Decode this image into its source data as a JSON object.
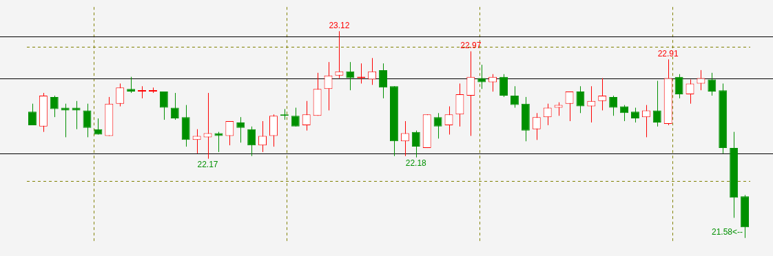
{
  "chart_data": {
    "type": "candlestick",
    "categories": [
      null,
      null,
      null,
      null,
      null,
      null,
      null,
      null,
      null,
      null,
      null,
      null,
      null,
      null,
      null,
      null,
      null,
      null,
      null,
      null,
      null,
      null,
      null,
      null,
      null,
      null,
      null,
      null,
      null,
      null,
      null,
      null,
      null,
      null,
      null,
      null,
      null,
      null,
      null,
      null,
      null,
      null,
      null,
      null,
      null,
      null,
      null,
      null,
      null,
      null,
      null,
      null,
      null,
      null,
      null,
      null,
      null,
      null,
      null,
      null,
      null,
      null,
      null,
      null,
      null,
      null
    ],
    "ohlc": [
      [
        22.52,
        22.58,
        22.42,
        22.42
      ],
      [
        22.41,
        22.66,
        22.37,
        22.64
      ],
      [
        22.63,
        22.64,
        22.48,
        22.54
      ],
      [
        22.55,
        22.58,
        22.33,
        22.53
      ],
      [
        22.55,
        22.6,
        22.39,
        22.53
      ],
      [
        22.53,
        22.58,
        22.33,
        22.4
      ],
      [
        22.39,
        22.47,
        22.35,
        22.35
      ],
      [
        22.34,
        22.63,
        22.34,
        22.58
      ],
      [
        22.58,
        22.73,
        22.56,
        22.7
      ],
      [
        22.69,
        22.78,
        22.66,
        22.67
      ],
      [
        22.67,
        22.71,
        22.62,
        22.68
      ],
      [
        22.67,
        22.7,
        22.66,
        22.68
      ],
      [
        22.67,
        22.67,
        22.46,
        22.55
      ],
      [
        22.55,
        22.66,
        22.46,
        22.47
      ],
      [
        22.48,
        22.57,
        22.26,
        22.31
      ],
      [
        22.31,
        22.39,
        22.21,
        22.34
      ],
      [
        22.33,
        22.66,
        22.17,
        22.36
      ],
      [
        22.36,
        22.37,
        22.22,
        22.34
      ],
      [
        22.34,
        22.45,
        22.27,
        22.45
      ],
      [
        22.44,
        22.48,
        22.29,
        22.4
      ],
      [
        22.39,
        22.41,
        22.19,
        22.27
      ],
      [
        22.27,
        22.45,
        22.22,
        22.34
      ],
      [
        22.34,
        22.5,
        22.26,
        22.49
      ],
      [
        22.5,
        22.54,
        22.46,
        22.49
      ],
      [
        22.49,
        22.55,
        22.41,
        22.41
      ],
      [
        22.42,
        22.6,
        22.38,
        22.5
      ],
      [
        22.49,
        22.81,
        22.49,
        22.69
      ],
      [
        22.69,
        22.89,
        22.53,
        22.79
      ],
      [
        22.79,
        23.12,
        22.77,
        22.82
      ],
      [
        22.82,
        22.89,
        22.68,
        22.77
      ],
      [
        22.77,
        22.88,
        22.73,
        22.78
      ],
      [
        22.76,
        22.92,
        22.72,
        22.82
      ],
      [
        22.83,
        22.88,
        22.62,
        22.7
      ],
      [
        22.71,
        22.71,
        22.19,
        22.3
      ],
      [
        22.3,
        22.45,
        22.19,
        22.36
      ],
      [
        22.37,
        22.38,
        22.18,
        22.26
      ],
      [
        22.25,
        22.5,
        22.25,
        22.5
      ],
      [
        22.48,
        22.51,
        22.32,
        22.41
      ],
      [
        22.42,
        22.56,
        22.35,
        22.5
      ],
      [
        22.5,
        22.73,
        22.41,
        22.65
      ],
      [
        22.64,
        22.97,
        22.34,
        22.78
      ],
      [
        22.77,
        22.87,
        22.69,
        22.74
      ],
      [
        22.74,
        22.8,
        22.67,
        22.78
      ],
      [
        22.78,
        22.8,
        22.63,
        22.64
      ],
      [
        22.64,
        22.71,
        22.55,
        22.57
      ],
      [
        22.58,
        22.63,
        22.3,
        22.38
      ],
      [
        22.39,
        22.51,
        22.31,
        22.48
      ],
      [
        22.48,
        22.58,
        22.42,
        22.55
      ],
      [
        22.55,
        22.59,
        22.49,
        22.57
      ],
      [
        22.58,
        22.67,
        22.45,
        22.67
      ],
      [
        22.67,
        22.71,
        22.51,
        22.56
      ],
      [
        22.56,
        22.71,
        22.44,
        22.6
      ],
      [
        22.6,
        22.77,
        22.53,
        22.64
      ],
      [
        22.63,
        22.64,
        22.49,
        22.55
      ],
      [
        22.56,
        22.57,
        22.45,
        22.51
      ],
      [
        22.52,
        22.55,
        22.44,
        22.47
      ],
      [
        22.48,
        22.57,
        22.33,
        22.53
      ],
      [
        22.53,
        22.75,
        22.41,
        22.44
      ],
      [
        22.43,
        22.91,
        22.42,
        22.77
      ],
      [
        22.78,
        22.8,
        22.62,
        22.65
      ],
      [
        22.65,
        22.76,
        22.58,
        22.73
      ],
      [
        22.73,
        22.83,
        22.68,
        22.77
      ],
      [
        22.76,
        22.81,
        22.64,
        22.67
      ],
      [
        22.68,
        22.73,
        22.21,
        22.25
      ],
      [
        22.25,
        22.37,
        21.73,
        21.88
      ],
      [
        21.89,
        21.9,
        21.58,
        21.66
      ]
    ],
    "colors": [
      "#009000",
      "#ff0000",
      "#009000",
      "#009000",
      "#009000",
      "#009000",
      "#009000",
      "#ff0000",
      "#ff0000",
      "#009000",
      "#ff0000",
      "#ff0000",
      "#009000",
      "#009000",
      "#009000",
      "#ff0000",
      "#ff0000",
      "#009000",
      "#ff0000",
      "#009000",
      "#009000",
      "#ff0000",
      "#ff0000",
      "#009000",
      "#009000",
      "#ff0000",
      "#ff0000",
      "#ff0000",
      "#ff0000",
      "#009000",
      "#ff0000",
      "#ff0000",
      "#009000",
      "#009000",
      "#ff0000",
      "#009000",
      "#ff0000",
      "#009000",
      "#ff0000",
      "#ff0000",
      "#ff0000",
      "#009000",
      "#ff0000",
      "#009000",
      "#009000",
      "#009000",
      "#ff0000",
      "#ff0000",
      "#ff0000",
      "#ff0000",
      "#009000",
      "#ff0000",
      "#ff0000",
      "#009000",
      "#009000",
      "#009000",
      "#ff0000",
      "#009000",
      "#ff0000",
      "#009000",
      "#ff0000",
      "#ff0000",
      "#009000",
      "#009000",
      "#009000",
      "#009000"
    ],
    "ylim": [
      21.55,
      23.3
    ],
    "yticks": [
      {
        "value": 22,
        "label": null
      },
      {
        "value": 23,
        "label": null
      }
    ],
    "grid": "y",
    "legend": false,
    "ref_lines": [
      {
        "axis": "y",
        "value": 23.08,
        "color": "#000000",
        "line_style": "solid"
      },
      {
        "axis": "y",
        "value": 22.77,
        "color": "#000000",
        "line_style": "solid"
      },
      {
        "axis": "y",
        "value": 22.21,
        "color": "#000000",
        "line_style": "solid"
      }
    ],
    "annotations": [
      {
        "text": "23.12",
        "y": 23.12
      },
      {
        "text": "22.97",
        "y": 22.97
      },
      {
        "text": "22.91",
        "y": 22.91
      },
      {
        "text": "22.17",
        "y": 22.17
      },
      {
        "text": "22.18",
        "y": 22.18
      },
      "21.58<--"
    ]
  }
}
